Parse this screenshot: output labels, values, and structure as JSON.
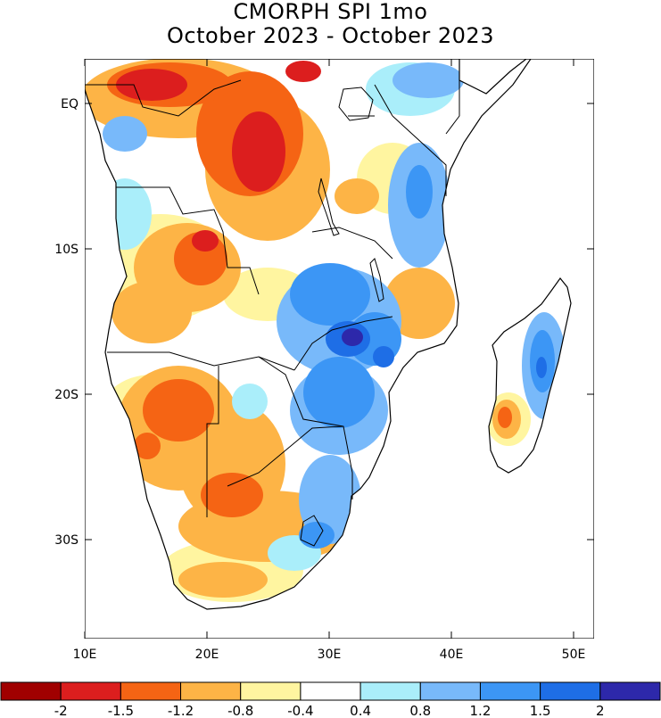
{
  "title_line1": "CMORPH SPI 1mo",
  "title_line2": "October 2023 - October 2023",
  "lat_labels": [
    {
      "text": "EQ",
      "lat": 0
    },
    {
      "text": "10S",
      "lat": -10
    },
    {
      "text": "20S",
      "lat": -20
    },
    {
      "text": "30S",
      "lat": -30
    }
  ],
  "lon_labels": [
    {
      "text": "10E",
      "lon": 10
    },
    {
      "text": "20E",
      "lon": 20
    },
    {
      "text": "30E",
      "lon": 30
    },
    {
      "text": "40E",
      "lon": 40
    },
    {
      "text": "50E",
      "lon": 50
    }
  ],
  "colorbar": {
    "colors": [
      "#a00000",
      "#dc1e1e",
      "#f56414",
      "#fdb446",
      "#fff5a0",
      "#ffffff",
      "#aaeefa",
      "#78b9fa",
      "#3c96f5",
      "#1e6ee6",
      "#2d28aa"
    ],
    "labels": [
      "-2",
      "-1.5",
      "-1.2",
      "-0.8",
      "-0.4",
      "0.4",
      "0.8",
      "1.2",
      "1.5",
      "2"
    ]
  },
  "map_colors": {
    "land": "#ffffff",
    "strong_dry": "#dc1e1e",
    "dry": "#f56414",
    "moderate_dry": "#fdb446",
    "light_dry": "#fff5a0",
    "light_wet": "#aaeefa",
    "wet": "#78b9fa",
    "moderate_wet": "#3c96f5",
    "strong_wet": "#1e6ee6",
    "extreme_wet": "#2d28aa"
  }
}
